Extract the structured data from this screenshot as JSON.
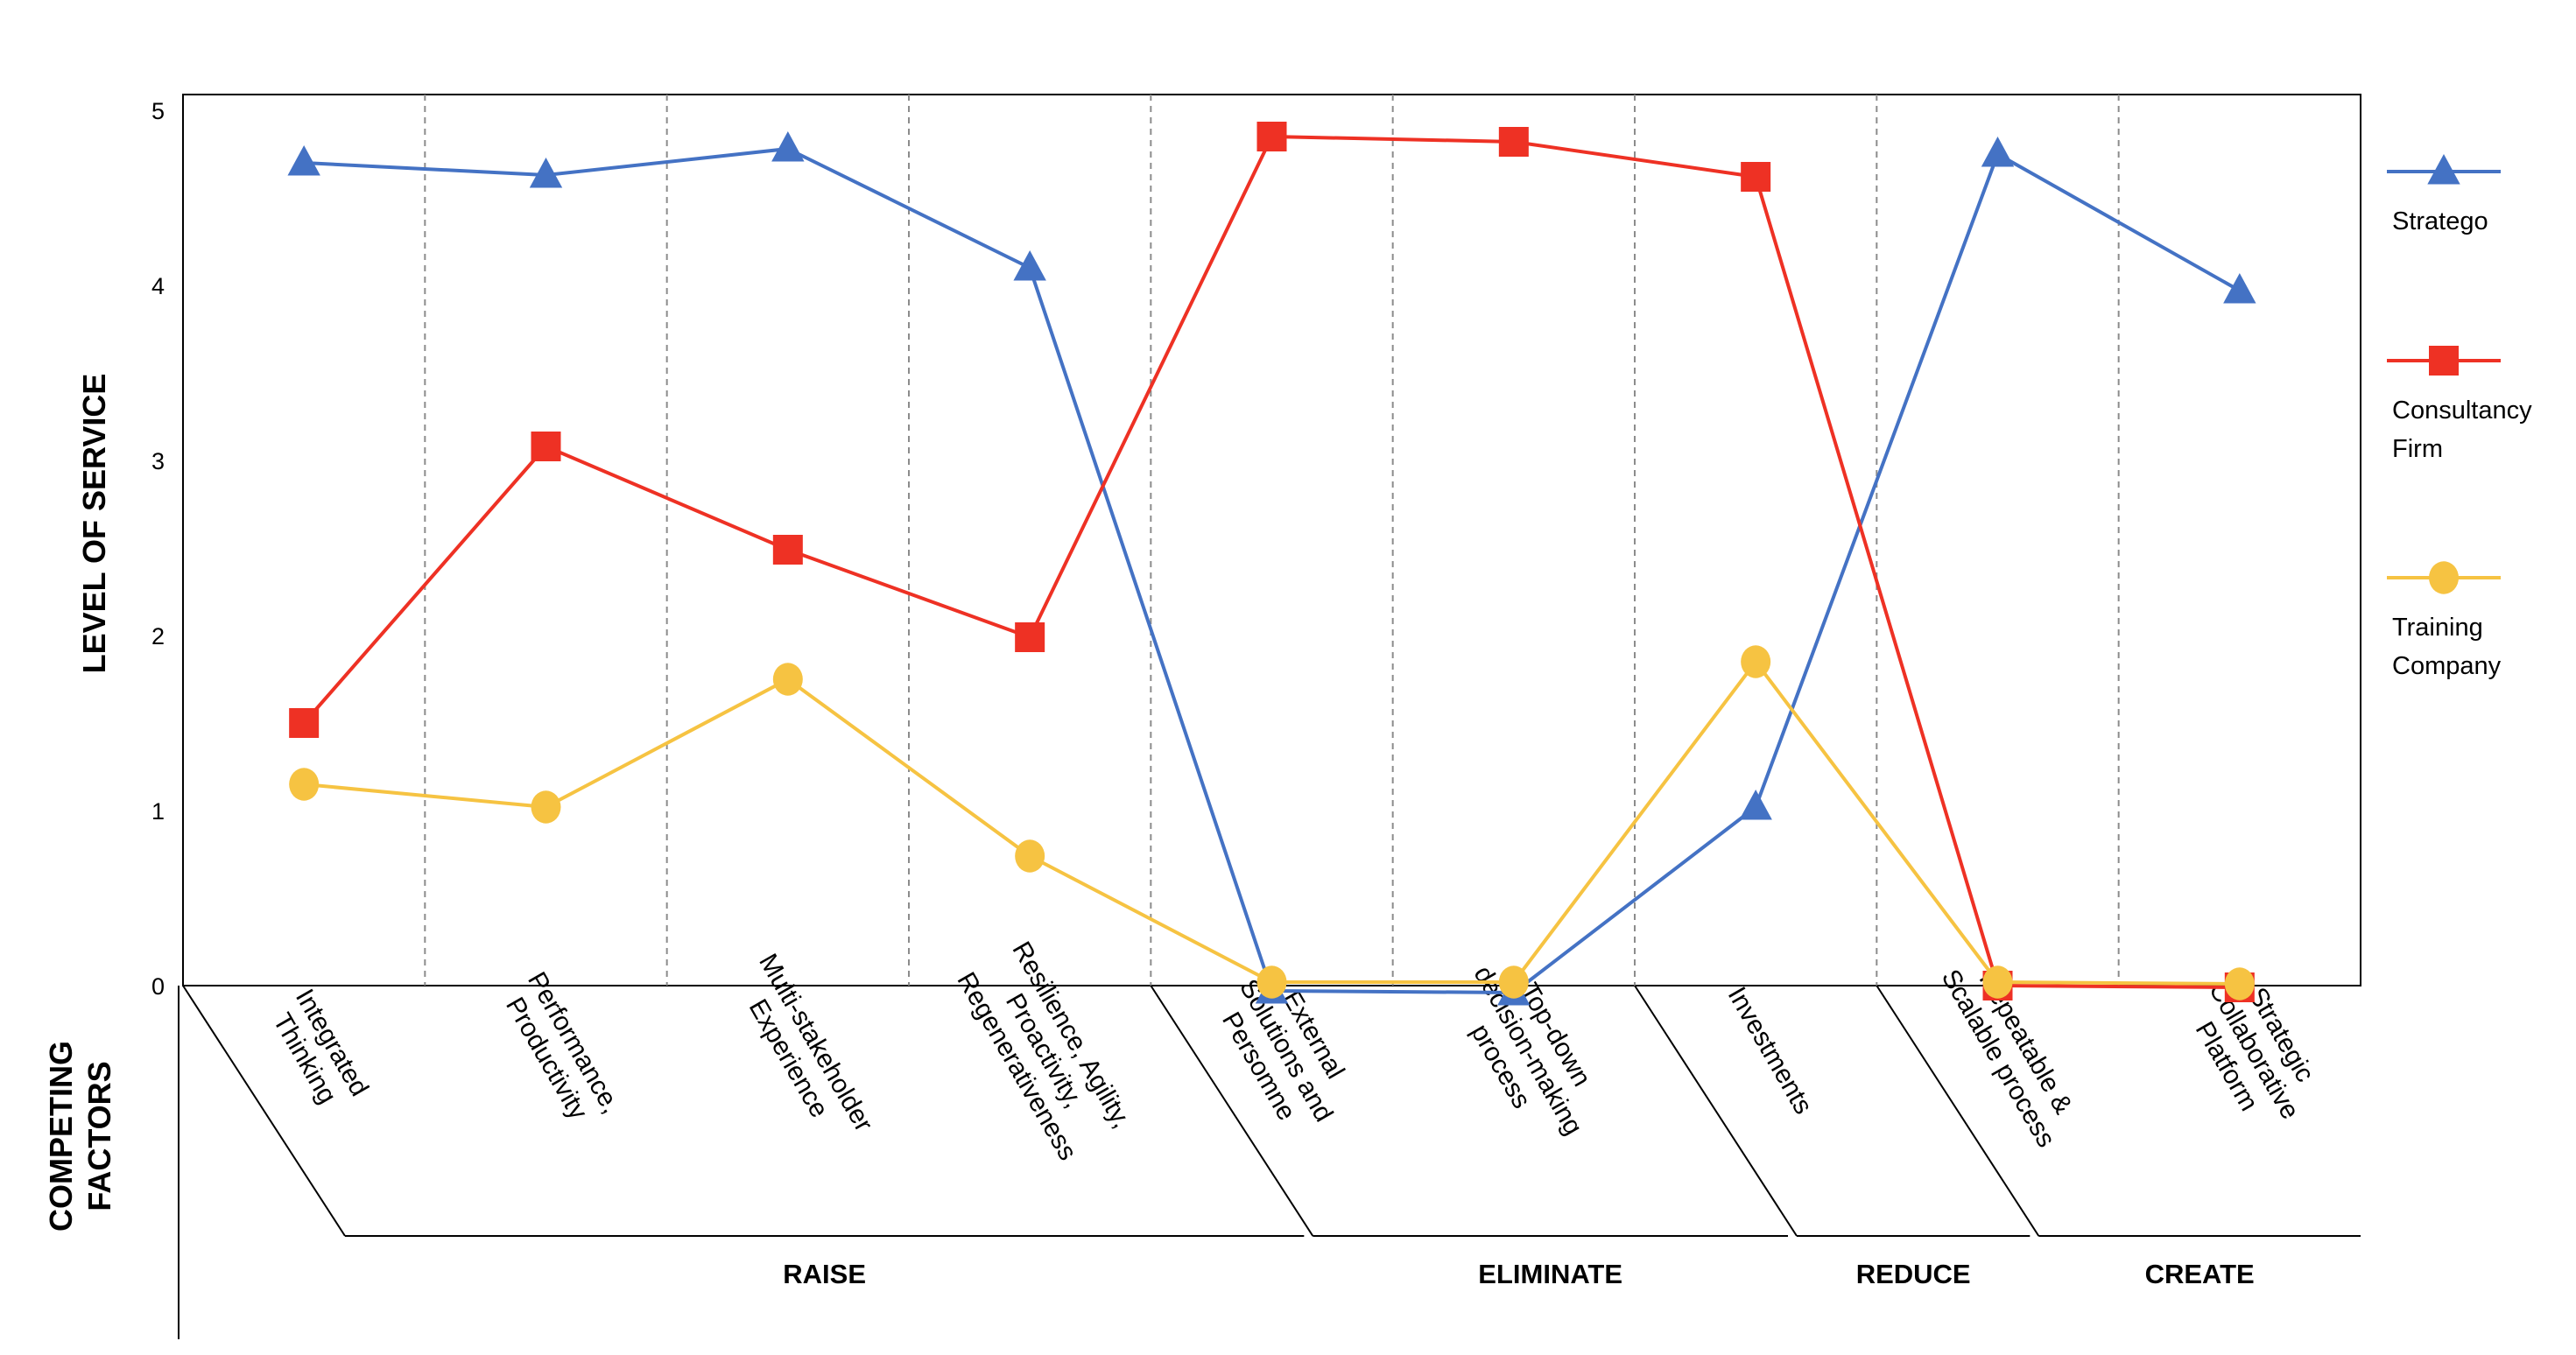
{
  "chart_data": {
    "type": "line",
    "ylabel": "LEVEL OF SERVICE",
    "xlabel": "COMPETING FACTORS",
    "ylim": [
      0,
      5
    ],
    "yticks": [
      "0",
      "1",
      "2",
      "3",
      "4",
      "5"
    ],
    "categories": [
      [
        "Integrated",
        "Thinking"
      ],
      [
        "Performance,",
        "Productivity"
      ],
      [
        "Multi-stakeholder",
        "Experience"
      ],
      [
        "Resilience, Agility,",
        "Proactivity,",
        "Regenerativeness"
      ],
      [
        "External",
        "Solutions and",
        "Persomne"
      ],
      [
        "Top-down",
        "decision-making",
        "process"
      ],
      [
        "Investments"
      ],
      [
        "Repeatable &",
        "Scalable process"
      ],
      [
        "Strategic",
        "Collaborative",
        "Platform"
      ]
    ],
    "groups": [
      {
        "label": "RAISE",
        "categories": [
          0,
          1,
          2,
          3
        ]
      },
      {
        "label": "ELIMINATE",
        "categories": [
          4,
          5
        ]
      },
      {
        "label": "REDUCE",
        "categories": [
          6
        ]
      },
      {
        "label": "CREATE",
        "categories": [
          7,
          8
        ]
      }
    ],
    "series": [
      {
        "name": "Stratego",
        "color": "#4472C4",
        "marker": "triangle",
        "values": [
          4.7,
          4.63,
          4.78,
          4.1,
          -0.03,
          -0.04,
          1.02,
          4.75,
          3.97
        ]
      },
      {
        "name": "Consultancy Firm",
        "color": "#EE3124",
        "marker": "square",
        "values": [
          1.5,
          3.08,
          2.49,
          1.99,
          4.85,
          4.82,
          4.62,
          0.0,
          -0.01
        ]
      },
      {
        "name": "Training Company",
        "color": "#F6C342",
        "marker": "circle",
        "values": [
          1.15,
          1.02,
          1.75,
          0.74,
          0.02,
          0.02,
          1.85,
          0.02,
          0.01
        ]
      }
    ],
    "legend": "right"
  }
}
